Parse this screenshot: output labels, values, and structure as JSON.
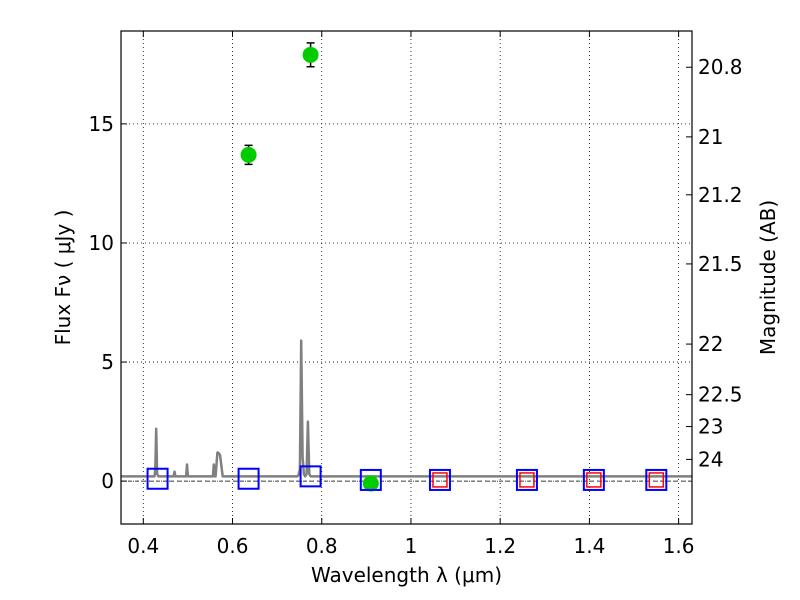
{
  "chart_data": {
    "type": "scatter",
    "xlabel": "Wavelength  λ (μm)",
    "ylabel": "Flux  Fν  ( μJy )",
    "ylabel_right": "Magnitude (AB)",
    "xlim": [
      0.35,
      1.63
    ],
    "ylim": [
      -1.8,
      18.9
    ],
    "grid": true,
    "x_ticks": [
      {
        "value": 0.4,
        "label": "0.4"
      },
      {
        "value": 0.6,
        "label": "0.6"
      },
      {
        "value": 0.8,
        "label": "0.8"
      },
      {
        "value": 1.0,
        "label": "1"
      },
      {
        "value": 1.2,
        "label": "1.2"
      },
      {
        "value": 1.4,
        "label": "1.4"
      },
      {
        "value": 1.6,
        "label": "1.6"
      }
    ],
    "y_ticks": [
      {
        "value": 0,
        "label": "0"
      },
      {
        "value": 5,
        "label": "5"
      },
      {
        "value": 10,
        "label": "10"
      },
      {
        "value": 15,
        "label": "15"
      }
    ],
    "magnitude_ticks": [
      {
        "value": 20.8,
        "label": "20.8"
      },
      {
        "value": 21.0,
        "label": "21"
      },
      {
        "value": 21.2,
        "label": "21.2"
      },
      {
        "value": 21.5,
        "label": "21.5"
      },
      {
        "value": 22.0,
        "label": "22"
      },
      {
        "value": 22.5,
        "label": "22.5"
      },
      {
        "value": 23.0,
        "label": "23"
      },
      {
        "value": 24.0,
        "label": "24"
      }
    ],
    "series": [
      {
        "kind": "observed",
        "color": "#00cc00",
        "points": [
          {
            "x": 0.636,
            "y": 13.7,
            "err": 0.4
          },
          {
            "x": 0.775,
            "y": 17.9,
            "err": 0.5
          },
          {
            "x": 0.91,
            "y": -0.1,
            "err": 0.2
          }
        ]
      },
      {
        "kind": "model-optical",
        "color": "#0000ff",
        "points": [
          {
            "x": 0.432,
            "y": 0.1
          },
          {
            "x": 0.636,
            "y": 0.1
          },
          {
            "x": 0.775,
            "y": 0.2
          },
          {
            "x": 0.91,
            "y": 0.05
          },
          {
            "x": 1.065,
            "y": 0.05
          },
          {
            "x": 1.26,
            "y": 0.05
          },
          {
            "x": 1.41,
            "y": 0.05
          },
          {
            "x": 1.55,
            "y": 0.05
          }
        ]
      },
      {
        "kind": "model-nir",
        "color": "#ff0000",
        "points": [
          {
            "x": 1.065,
            "y": 0.05
          },
          {
            "x": 1.26,
            "y": 0.05
          },
          {
            "x": 1.41,
            "y": 0.05
          },
          {
            "x": 1.55,
            "y": 0.05
          }
        ]
      }
    ],
    "spectrum": {
      "color": "#808080",
      "x": [
        0.35,
        0.425,
        0.427,
        0.429,
        0.431,
        0.434,
        0.45,
        0.468,
        0.47,
        0.472,
        0.474,
        0.49,
        0.496,
        0.498,
        0.5,
        0.502,
        0.55,
        0.556,
        0.558,
        0.56,
        0.562,
        0.566,
        0.568,
        0.572,
        0.578,
        0.582,
        0.745,
        0.748,
        0.751,
        0.754,
        0.757,
        0.76,
        0.763,
        0.766,
        0.769,
        0.772,
        0.775,
        0.778,
        0.781,
        0.9,
        1.0,
        1.2,
        1.4,
        1.63
      ],
      "y": [
        0.2,
        0.2,
        0.5,
        2.2,
        0.3,
        0.2,
        0.2,
        0.2,
        0.4,
        0.2,
        0.2,
        0.2,
        0.2,
        0.7,
        0.2,
        0.2,
        0.2,
        0.2,
        0.7,
        0.2,
        0.2,
        1.2,
        1.2,
        1.1,
        0.2,
        0.2,
        0.2,
        0.25,
        0.5,
        5.9,
        1.0,
        0.3,
        0.2,
        0.3,
        2.5,
        0.3,
        0.2,
        0.2,
        0.2,
        0.2,
        0.2,
        0.2,
        0.2,
        0.2
      ]
    }
  }
}
